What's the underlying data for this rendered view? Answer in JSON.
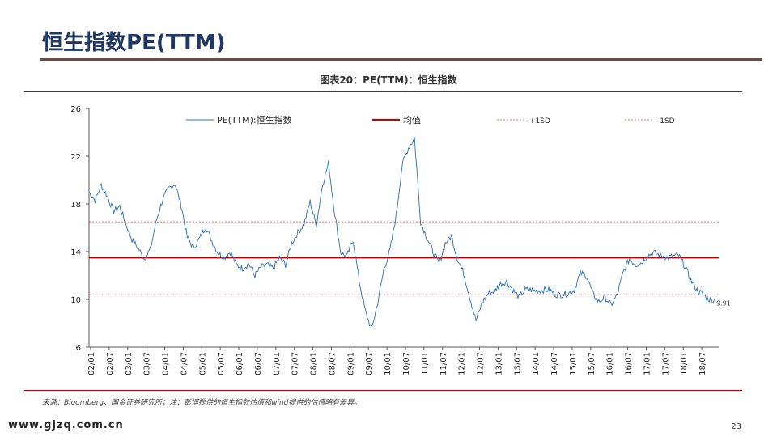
{
  "slide": {
    "title": "恒生指数PE(TTM)",
    "source": "来源：Bloomberg、国金证券研究所；注：彭博提供的恒生指数估值和wind提供的估值略有差异。",
    "website": "www.gjzq.com.cn",
    "page_number": "23"
  },
  "colors": {
    "series": "#2a6fb5",
    "mean": "#c00000",
    "sd": "#c0504d",
    "title_rule": "#6b4c45",
    "title_text": "#1f3864"
  },
  "chart_data": {
    "type": "line",
    "title": "图表20：PE(TTM)：恒生指数",
    "xlabel": "",
    "ylabel": "",
    "ylim": [
      6,
      26
    ],
    "yticks": [
      6,
      10,
      14,
      18,
      22,
      26
    ],
    "x_tick_labels": [
      "02/01",
      "02/07",
      "03/01",
      "03/07",
      "04/01",
      "04/07",
      "05/01",
      "05/07",
      "06/01",
      "06/07",
      "07/01",
      "07/07",
      "08/01",
      "08/07",
      "09/01",
      "09/07",
      "10/01",
      "10/07",
      "11/01",
      "11/07",
      "12/01",
      "12/07",
      "13/01",
      "13/07",
      "14/01",
      "14/07",
      "15/01",
      "15/07",
      "16/01",
      "16/07",
      "17/01",
      "17/07",
      "18/01",
      "18/07"
    ],
    "legend": [
      "PE(TTM):恒生指数",
      "均值",
      "+1SD",
      "-1SD"
    ],
    "reference_lines": {
      "mean": 13.5,
      "plus_1sd": 16.5,
      "minus_1sd": 10.4
    },
    "last_value_label": "9.91",
    "series": [
      {
        "name": "PE(TTM):恒生指数",
        "values": [
          19.0,
          18.3,
          19.6,
          18.6,
          17.4,
          17.8,
          16.3,
          15.0,
          14.3,
          13.4,
          14.2,
          16.7,
          18.4,
          19.3,
          19.7,
          17.9,
          15.2,
          14.3,
          15.1,
          16.1,
          14.9,
          13.9,
          13.5,
          14.0,
          12.9,
          12.6,
          13.0,
          12.0,
          12.7,
          12.9,
          12.6,
          13.5,
          12.9,
          14.7,
          15.6,
          16.3,
          18.2,
          16.2,
          19.6,
          21.4,
          17.2,
          13.9,
          13.6,
          15.0,
          11.5,
          9.0,
          7.5,
          9.7,
          12.5,
          14.1,
          17.0,
          21.3,
          22.7,
          23.5,
          16.5,
          15.2,
          14.0,
          13.0,
          14.7,
          15.3,
          13.4,
          12.2,
          10.2,
          8.2,
          9.7,
          10.5,
          10.7,
          11.3,
          11.5,
          10.8,
          10.2,
          10.8,
          10.8,
          10.7,
          10.8,
          10.8,
          10.4,
          10.4,
          10.5,
          10.8,
          12.2,
          12.0,
          10.5,
          9.8,
          10.2,
          9.5,
          10.4,
          12.3,
          13.4,
          12.9,
          13.1,
          13.7,
          13.9,
          13.7,
          13.5,
          13.6,
          13.7,
          12.8,
          11.6,
          10.8,
          10.4,
          10.0,
          9.91
        ]
      }
    ]
  }
}
